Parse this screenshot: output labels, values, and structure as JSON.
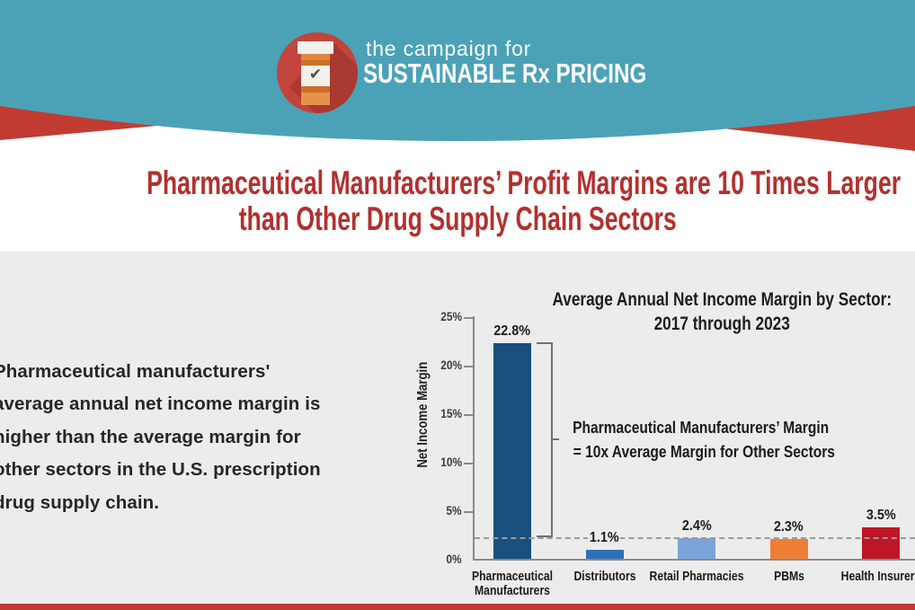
{
  "page": {
    "background": "#FFFFFF",
    "gray_band_color": "#ECECEC"
  },
  "header": {
    "tagline": "the campaign for",
    "brand": "SUSTAINABLE Rx PRICING",
    "teal_color": "#4BA2B7",
    "ribbon_red_color": "#C23B32",
    "logo": {
      "icon": "pill-bottle-icon",
      "circle_color": "#C2443C",
      "shadow_color": "#A93931",
      "check_glyph": "✔",
      "check_color": "#4C4B49"
    }
  },
  "headline": {
    "line1": "Pharmaceutical Manufacturers’ Profit Margins are 10 Times Larger",
    "line2": "than Other Drug Supply Chain Sectors",
    "color": "#B3302E"
  },
  "intro": {
    "lines": [
      "Pharmaceutical manufacturers'",
      "average annual net income margin is",
      "higher than the average margin for",
      "other sectors in the U.S. prescription",
      "drug supply chain."
    ]
  },
  "chart_data": {
    "type": "bar",
    "title_line1": "Average Annual Net Income Margin by Sector:",
    "title_line2": "2017 through 2023",
    "ylabel": "Net Income Margin",
    "yticks": [
      "0%",
      "5%",
      "10%",
      "15%",
      "20%",
      "25%"
    ],
    "ylim": [
      0,
      25
    ],
    "grid": false,
    "categories": [
      "Pharmaceutical Manufacturers",
      "Distributors",
      "Retail Pharmacies",
      "PBMs",
      "Health Insurers"
    ],
    "values": [
      22.8,
      1.1,
      2.4,
      2.3,
      3.5
    ],
    "value_labels": [
      "22.8%",
      "1.1%",
      "2.4%",
      "2.3%",
      "3.5%"
    ],
    "bar_colors": [
      "#17507D",
      "#2D71B4",
      "#7AA4D9",
      "#EF7E35",
      "#BF1626"
    ],
    "reference_line": {
      "value": 2.3,
      "style": "dashed",
      "color": "#9A9A9A"
    },
    "annotation_line1": "Pharmaceutical Manufacturers’ Margin",
    "annotation_line2": "= 10x Average Margin for Other Sectors"
  },
  "footer": {
    "bar_color": "#C23B32"
  }
}
